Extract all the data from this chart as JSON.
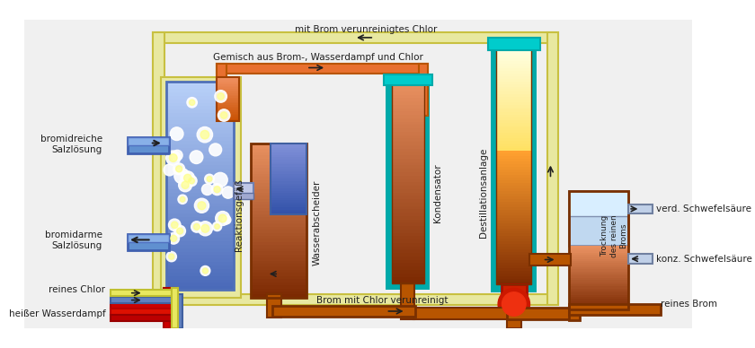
{
  "bg": "none",
  "labels": {
    "top_pipe": "mit Brom verunreinigtes Chlor",
    "mid_pipe": "Gemisch aus Brom-, Wasserdampf und Chlor",
    "bromidreich": "bromidreiche\nSalzlösung",
    "bromidarm": "bromidarme\nSalzlösung",
    "reines_chlor": "reines Chlor",
    "heisser": "heißer Wasserdampf",
    "reaktion": "Reaktionsgefäß",
    "wasser": "Wasserabscheider",
    "konden": "Kondensator",
    "destil": "Destillationsanlage",
    "trocknung": "Trocknung\ndes reinen\nBroms",
    "verd_schwef": "verd. Schwefelsäure",
    "konz_schwef": "konz. Schwefelsäure",
    "reines_brom": "reines Brom",
    "brom_chlor": "Brom mit Chlor verunreinigt"
  },
  "colors": {
    "ob": "#b85500",
    "ob2": "#8b3a00",
    "teal": "#00aaaa",
    "teal2": "#00cccc",
    "blue1": "#7090d0",
    "blue2": "#4060b0",
    "blue3": "#9ab0d8",
    "lblue": "#aac8e8",
    "pyellow": "#e8e8a0",
    "pyellow2": "#d8d870",
    "red": "#cc0000",
    "red2": "#ee2200",
    "warm1": "#e87030",
    "warm2": "#f09060",
    "ltyellow": "#fffff0",
    "arrow": "#202020"
  }
}
